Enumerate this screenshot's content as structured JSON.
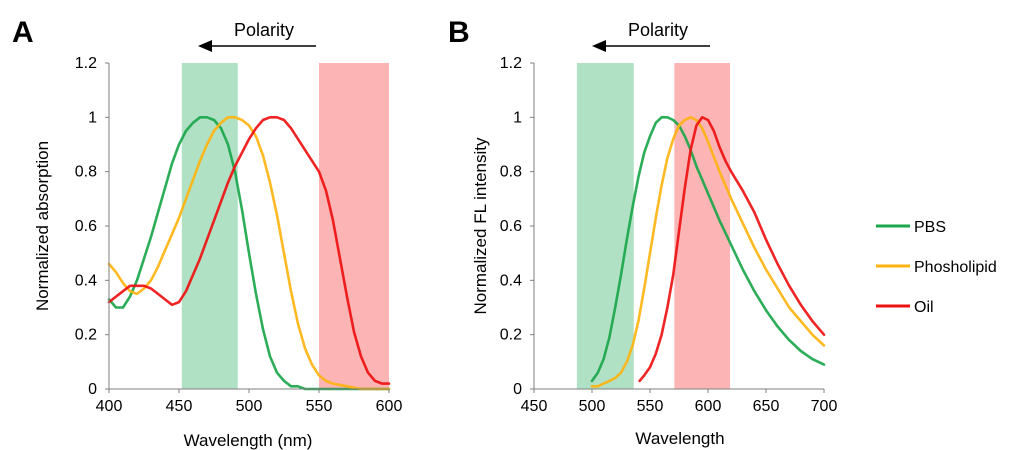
{
  "colors": {
    "PBS": "#1aa64a",
    "Phosholipid": "#ffb30f",
    "Oil": "#ee1111",
    "green_band": "#a3dcbb",
    "red_band": "#fba7a7"
  },
  "legend": [
    "PBS",
    "Phosholipid",
    "Oil"
  ],
  "chart_data": [
    {
      "panel": "A",
      "type": "line",
      "title": "",
      "xlabel": "Wavelength (nm)",
      "ylabel": "Normalized absorption",
      "annotation": "Polarity",
      "xlim": [
        400,
        600
      ],
      "ylim": [
        0,
        1.2
      ],
      "xticks": [
        "400",
        "450",
        "500",
        "550",
        "600"
      ],
      "yticks": [
        "0",
        "0.2",
        "0.4",
        "0.6",
        "0.8",
        "1",
        "1.2"
      ],
      "bands": [
        {
          "color": "green",
          "x": [
            452,
            492
          ]
        },
        {
          "color": "red",
          "x": [
            550,
            600
          ]
        }
      ],
      "series": [
        {
          "name": "PBS",
          "x": [
            400,
            405,
            410,
            415,
            420,
            425,
            430,
            435,
            440,
            445,
            450,
            455,
            460,
            465,
            470,
            475,
            480,
            485,
            490,
            495,
            500,
            505,
            510,
            515,
            520,
            525,
            530,
            535,
            540,
            545,
            550,
            560,
            570,
            580,
            590,
            600
          ],
          "y": [
            0.33,
            0.3,
            0.3,
            0.34,
            0.4,
            0.48,
            0.56,
            0.65,
            0.74,
            0.83,
            0.9,
            0.95,
            0.98,
            1.0,
            1.0,
            0.99,
            0.96,
            0.9,
            0.8,
            0.66,
            0.5,
            0.35,
            0.22,
            0.12,
            0.06,
            0.03,
            0.01,
            0.01,
            0.0,
            0.0,
            0.0,
            0.0,
            0.0,
            0.0,
            0.0,
            0.0
          ]
        },
        {
          "name": "Phosholipid",
          "x": [
            400,
            405,
            410,
            415,
            420,
            425,
            430,
            435,
            440,
            445,
            450,
            455,
            460,
            465,
            470,
            475,
            480,
            485,
            490,
            495,
            500,
            505,
            510,
            515,
            520,
            525,
            530,
            535,
            540,
            545,
            550,
            555,
            560,
            570,
            580,
            590,
            600
          ],
          "y": [
            0.46,
            0.43,
            0.39,
            0.36,
            0.35,
            0.37,
            0.4,
            0.45,
            0.51,
            0.57,
            0.63,
            0.7,
            0.77,
            0.84,
            0.9,
            0.95,
            0.98,
            1.0,
            1.0,
            0.99,
            0.97,
            0.93,
            0.86,
            0.76,
            0.64,
            0.5,
            0.36,
            0.24,
            0.15,
            0.09,
            0.05,
            0.03,
            0.02,
            0.01,
            0.0,
            0.0,
            0.0
          ]
        },
        {
          "name": "Oil",
          "x": [
            400,
            405,
            410,
            415,
            420,
            425,
            430,
            435,
            440,
            445,
            450,
            455,
            460,
            465,
            470,
            475,
            480,
            485,
            490,
            495,
            500,
            505,
            510,
            515,
            520,
            525,
            530,
            535,
            540,
            545,
            550,
            555,
            560,
            565,
            570,
            575,
            580,
            585,
            590,
            595,
            600
          ],
          "y": [
            0.32,
            0.34,
            0.36,
            0.38,
            0.38,
            0.38,
            0.37,
            0.35,
            0.33,
            0.31,
            0.32,
            0.36,
            0.42,
            0.48,
            0.55,
            0.62,
            0.69,
            0.76,
            0.82,
            0.87,
            0.92,
            0.96,
            0.99,
            1.0,
            1.0,
            0.99,
            0.96,
            0.92,
            0.88,
            0.84,
            0.8,
            0.73,
            0.62,
            0.48,
            0.34,
            0.21,
            0.12,
            0.06,
            0.03,
            0.02,
            0.02
          ]
        }
      ]
    },
    {
      "panel": "B",
      "type": "line",
      "title": "",
      "xlabel": "Wavelength",
      "ylabel": "Normalized FL intensity",
      "annotation": "Polarity",
      "xlim": [
        450,
        700
      ],
      "ylim": [
        0,
        1.2
      ],
      "xticks": [
        "450",
        "500",
        "550",
        "600",
        "650",
        "700"
      ],
      "yticks": [
        "0",
        "0.2",
        "0.4",
        "0.6",
        "0.8",
        "1",
        "1.2"
      ],
      "bands": [
        {
          "color": "green",
          "x": [
            487,
            536
          ]
        },
        {
          "color": "red",
          "x": [
            571,
            619
          ]
        }
      ],
      "series": [
        {
          "name": "PBS",
          "x": [
            500,
            505,
            510,
            515,
            520,
            525,
            530,
            535,
            540,
            545,
            550,
            555,
            560,
            565,
            570,
            575,
            580,
            585,
            590,
            595,
            600,
            610,
            620,
            630,
            640,
            650,
            660,
            670,
            680,
            690,
            700
          ],
          "y": [
            0.03,
            0.06,
            0.11,
            0.19,
            0.3,
            0.42,
            0.55,
            0.67,
            0.78,
            0.87,
            0.93,
            0.98,
            1.0,
            1.0,
            0.99,
            0.97,
            0.93,
            0.88,
            0.82,
            0.77,
            0.72,
            0.62,
            0.53,
            0.44,
            0.36,
            0.29,
            0.23,
            0.18,
            0.14,
            0.11,
            0.09
          ]
        },
        {
          "name": "Phosholipid",
          "x": [
            500,
            505,
            510,
            515,
            520,
            525,
            530,
            535,
            540,
            545,
            550,
            555,
            560,
            565,
            570,
            575,
            580,
            585,
            590,
            595,
            600,
            610,
            620,
            630,
            640,
            650,
            660,
            670,
            680,
            690,
            700
          ],
          "y": [
            0.01,
            0.01,
            0.02,
            0.03,
            0.04,
            0.06,
            0.1,
            0.16,
            0.25,
            0.37,
            0.5,
            0.63,
            0.75,
            0.85,
            0.92,
            0.97,
            0.99,
            1.0,
            0.99,
            0.96,
            0.91,
            0.8,
            0.7,
            0.61,
            0.52,
            0.44,
            0.37,
            0.3,
            0.25,
            0.2,
            0.16
          ]
        },
        {
          "name": "Oil",
          "x": [
            541,
            545,
            550,
            555,
            560,
            565,
            570,
            575,
            580,
            585,
            590,
            595,
            600,
            605,
            610,
            615,
            620,
            630,
            640,
            650,
            660,
            670,
            680,
            690,
            700
          ],
          "y": [
            0.03,
            0.05,
            0.08,
            0.13,
            0.2,
            0.3,
            0.42,
            0.58,
            0.74,
            0.88,
            0.97,
            1.0,
            0.99,
            0.95,
            0.89,
            0.84,
            0.8,
            0.73,
            0.65,
            0.55,
            0.46,
            0.38,
            0.31,
            0.25,
            0.2
          ]
        }
      ]
    }
  ]
}
